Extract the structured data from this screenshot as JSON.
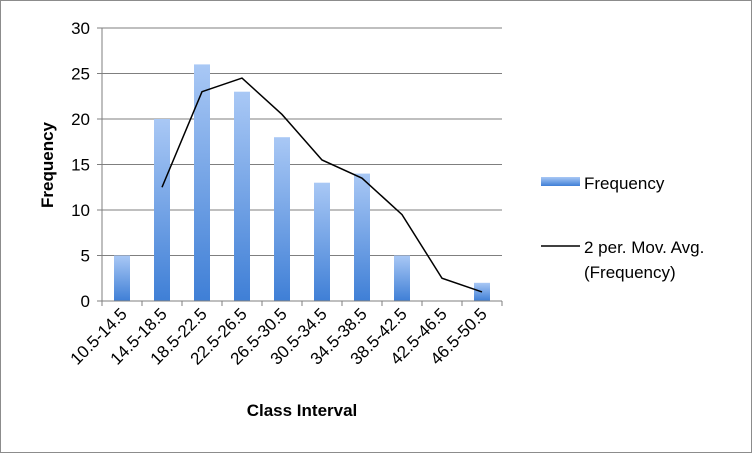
{
  "chart_data": {
    "type": "bar",
    "categories": [
      "10.5-14.5",
      "14.5-18.5",
      "18.5-22.5",
      "22.5-26.5",
      "26.5-30.5",
      "30.5-34.5",
      "34.5-38.5",
      "38.5-42.5",
      "42.5-46.5",
      "46.5-50.5"
    ],
    "series": [
      {
        "name": "Frequency",
        "type": "bar",
        "values": [
          5,
          20,
          26,
          23,
          18,
          13,
          14,
          5,
          0,
          2
        ]
      },
      {
        "name": "2 per. Mov. Avg. (Frequency)",
        "type": "line",
        "values": [
          null,
          12.5,
          23,
          24.5,
          20.5,
          15.5,
          13.5,
          9.5,
          2.5,
          1
        ]
      }
    ],
    "xlabel": "Class Interval",
    "ylabel": "Frequency",
    "ylim": [
      0,
      30
    ],
    "yticks": [
      "0",
      "5",
      "10",
      "15",
      "20",
      "25",
      "30"
    ],
    "grid": true,
    "legend_position": "right",
    "legend": {
      "bar_label": "Frequency",
      "line_label_1": "2 per. Mov. Avg.",
      "line_label_2": "(Frequency)"
    },
    "colors": {
      "bar_top": "#a9c8f5",
      "bar_bottom": "#3f7fd6",
      "line": "#000000",
      "grid": "#7f7f7f"
    }
  }
}
